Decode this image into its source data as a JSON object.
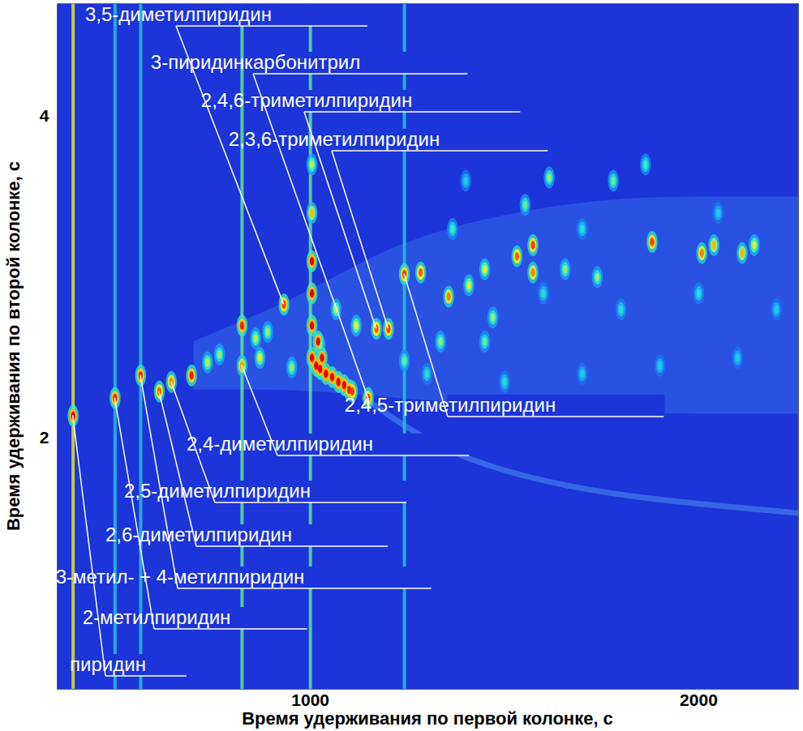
{
  "chart_data": {
    "type": "heatmap",
    "x_label": "Время удерживания по первой колонке, с",
    "y_label": "Время удерживания по второй колонке, с",
    "xlim": [
      348,
      2257
    ],
    "xticks": [
      1000,
      2000
    ],
    "ylim": [
      0.44,
      4.7
    ],
    "yticks": [
      2,
      4
    ],
    "zlim": [
      0,
      1
    ],
    "peaks": [
      {
        "x": 389,
        "y": 2.14,
        "intensity": 1.0,
        "label": "пиридин"
      },
      {
        "x": 497,
        "y": 2.25,
        "intensity": 0.95,
        "label": "2-метилпиридин"
      },
      {
        "x": 563,
        "y": 2.39,
        "intensity": 0.95,
        "label": "3-метил- + 4-метилпиридин"
      },
      {
        "x": 611,
        "y": 2.29,
        "intensity": 0.85,
        "label": "2,6-диметилпиридин"
      },
      {
        "x": 642,
        "y": 2.35,
        "intensity": 0.8,
        "label": "2,5-диметилпиридин"
      },
      {
        "x": 824,
        "y": 2.45,
        "intensity": 0.75,
        "label": "2,4-диметилпиридин"
      },
      {
        "x": 932,
        "y": 2.83,
        "intensity": 0.9,
        "label": "3,5-диметилпиридин"
      },
      {
        "x": 1149,
        "y": 2.25,
        "intensity": 0.9,
        "label": "3-пиридинкарбонитрил"
      },
      {
        "x": 1170,
        "y": 2.68,
        "intensity": 0.85,
        "label": "2,4,6-триметилпиридин"
      },
      {
        "x": 1201,
        "y": 2.68,
        "intensity": 0.9,
        "label": "2,3,6-триметилпиридин"
      },
      {
        "x": 1242,
        "y": 3.02,
        "intensity": 0.9,
        "label": "2,4,5-триметилпиридин"
      },
      {
        "x": 694,
        "y": 2.39,
        "intensity": 0.95
      },
      {
        "x": 824,
        "y": 2.7,
        "intensity": 0.95
      },
      {
        "x": 735,
        "y": 2.47,
        "intensity": 0.55
      },
      {
        "x": 766,
        "y": 2.52,
        "intensity": 0.5
      },
      {
        "x": 870,
        "y": 2.5,
        "intensity": 0.6
      },
      {
        "x": 859,
        "y": 2.62,
        "intensity": 0.55
      },
      {
        "x": 890,
        "y": 2.66,
        "intensity": 0.5
      },
      {
        "x": 952,
        "y": 2.44,
        "intensity": 0.5
      },
      {
        "x": 1025,
        "y": 2.58,
        "intensity": 0.5
      },
      {
        "x": 1066,
        "y": 2.8,
        "intensity": 0.55
      },
      {
        "x": 1118,
        "y": 2.7,
        "intensity": 0.6
      },
      {
        "x": 1242,
        "y": 2.48,
        "intensity": 0.45
      },
      {
        "x": 1284,
        "y": 3.03,
        "intensity": 0.85
      },
      {
        "x": 1335,
        "y": 2.6,
        "intensity": 0.5
      },
      {
        "x": 1356,
        "y": 2.88,
        "intensity": 0.8
      },
      {
        "x": 1366,
        "y": 3.3,
        "intensity": 0.4
      },
      {
        "x": 1408,
        "y": 2.95,
        "intensity": 0.6
      },
      {
        "x": 1449,
        "y": 3.05,
        "intensity": 0.6
      },
      {
        "x": 1449,
        "y": 2.6,
        "intensity": 0.45
      },
      {
        "x": 1470,
        "y": 2.75,
        "intensity": 0.5
      },
      {
        "x": 1532,
        "y": 3.13,
        "intensity": 0.85
      },
      {
        "x": 1553,
        "y": 3.45,
        "intensity": 0.45
      },
      {
        "x": 1573,
        "y": 3.2,
        "intensity": 0.9
      },
      {
        "x": 1573,
        "y": 3.03,
        "intensity": 0.8
      },
      {
        "x": 1615,
        "y": 3.62,
        "intensity": 0.5
      },
      {
        "x": 1656,
        "y": 3.05,
        "intensity": 0.5
      },
      {
        "x": 1739,
        "y": 3.0,
        "intensity": 0.5
      },
      {
        "x": 1780,
        "y": 3.6,
        "intensity": 0.45
      },
      {
        "x": 1863,
        "y": 3.7,
        "intensity": 0.4
      },
      {
        "x": 1880,
        "y": 3.22,
        "intensity": 0.9
      },
      {
        "x": 2008,
        "y": 3.15,
        "intensity": 0.8
      },
      {
        "x": 2039,
        "y": 3.2,
        "intensity": 0.7
      },
      {
        "x": 2112,
        "y": 3.15,
        "intensity": 0.7
      },
      {
        "x": 2143,
        "y": 3.2,
        "intensity": 0.6
      },
      {
        "x": 1004,
        "y": 3.7,
        "intensity": 0.55
      },
      {
        "x": 1004,
        "y": 3.4,
        "intensity": 0.7
      },
      {
        "x": 1004,
        "y": 3.1,
        "intensity": 1.0
      },
      {
        "x": 1004,
        "y": 2.9,
        "intensity": 1.0
      },
      {
        "x": 1004,
        "y": 2.7,
        "intensity": 1.0
      },
      {
        "x": 1004,
        "y": 2.5,
        "intensity": 1.0
      },
      {
        "x": 1020,
        "y": 2.6,
        "intensity": 1.0
      },
      {
        "x": 1030,
        "y": 2.5,
        "intensity": 1.0
      },
      {
        "x": 1015,
        "y": 2.45,
        "intensity": 1.0
      },
      {
        "x": 1025,
        "y": 2.43,
        "intensity": 1.0
      },
      {
        "x": 1040,
        "y": 2.4,
        "intensity": 1.0
      },
      {
        "x": 1056,
        "y": 2.38,
        "intensity": 1.0
      },
      {
        "x": 1072,
        "y": 2.35,
        "intensity": 1.0
      },
      {
        "x": 1087,
        "y": 2.33,
        "intensity": 1.0
      },
      {
        "x": 1100,
        "y": 2.3,
        "intensity": 0.95
      },
      {
        "x": 1108,
        "y": 2.29,
        "intensity": 0.9
      },
      {
        "x": 1300,
        "y": 2.4,
        "intensity": 0.35
      },
      {
        "x": 1500,
        "y": 2.35,
        "intensity": 0.35
      },
      {
        "x": 1700,
        "y": 2.4,
        "intensity": 0.3
      },
      {
        "x": 1900,
        "y": 2.45,
        "intensity": 0.3
      },
      {
        "x": 2100,
        "y": 2.5,
        "intensity": 0.3
      },
      {
        "x": 1600,
        "y": 2.9,
        "intensity": 0.35
      },
      {
        "x": 1800,
        "y": 2.8,
        "intensity": 0.35
      },
      {
        "x": 2000,
        "y": 2.9,
        "intensity": 0.35
      },
      {
        "x": 2200,
        "y": 2.8,
        "intensity": 0.3
      },
      {
        "x": 1400,
        "y": 3.6,
        "intensity": 0.3
      },
      {
        "x": 1700,
        "y": 3.3,
        "intensity": 0.35
      },
      {
        "x": 2050,
        "y": 3.4,
        "intensity": 0.3
      }
    ],
    "streaks": {
      "x": [
        389,
        497,
        563,
        824,
        1000,
        1242
      ],
      "intensity": [
        0.6,
        0.3,
        0.3,
        0.45,
        0.45,
        0.3
      ]
    },
    "cloud": {
      "x": [
        700,
        1000,
        1200,
        1500,
        1800,
        2100,
        2257
      ],
      "y_low": [
        2.3,
        2.3,
        2.25,
        2.2,
        2.15,
        2.15,
        2.15
      ],
      "y_high": [
        2.6,
        2.9,
        3.2,
        3.4,
        3.5,
        3.5,
        3.5
      ]
    },
    "bleed": {
      "x": [
        1139,
        1284,
        1449,
        1656,
        1863,
        2070,
        2257
      ],
      "y": [
        2.25,
        2.0,
        1.825,
        1.7,
        1.625,
        1.575,
        1.535
      ]
    }
  }
}
